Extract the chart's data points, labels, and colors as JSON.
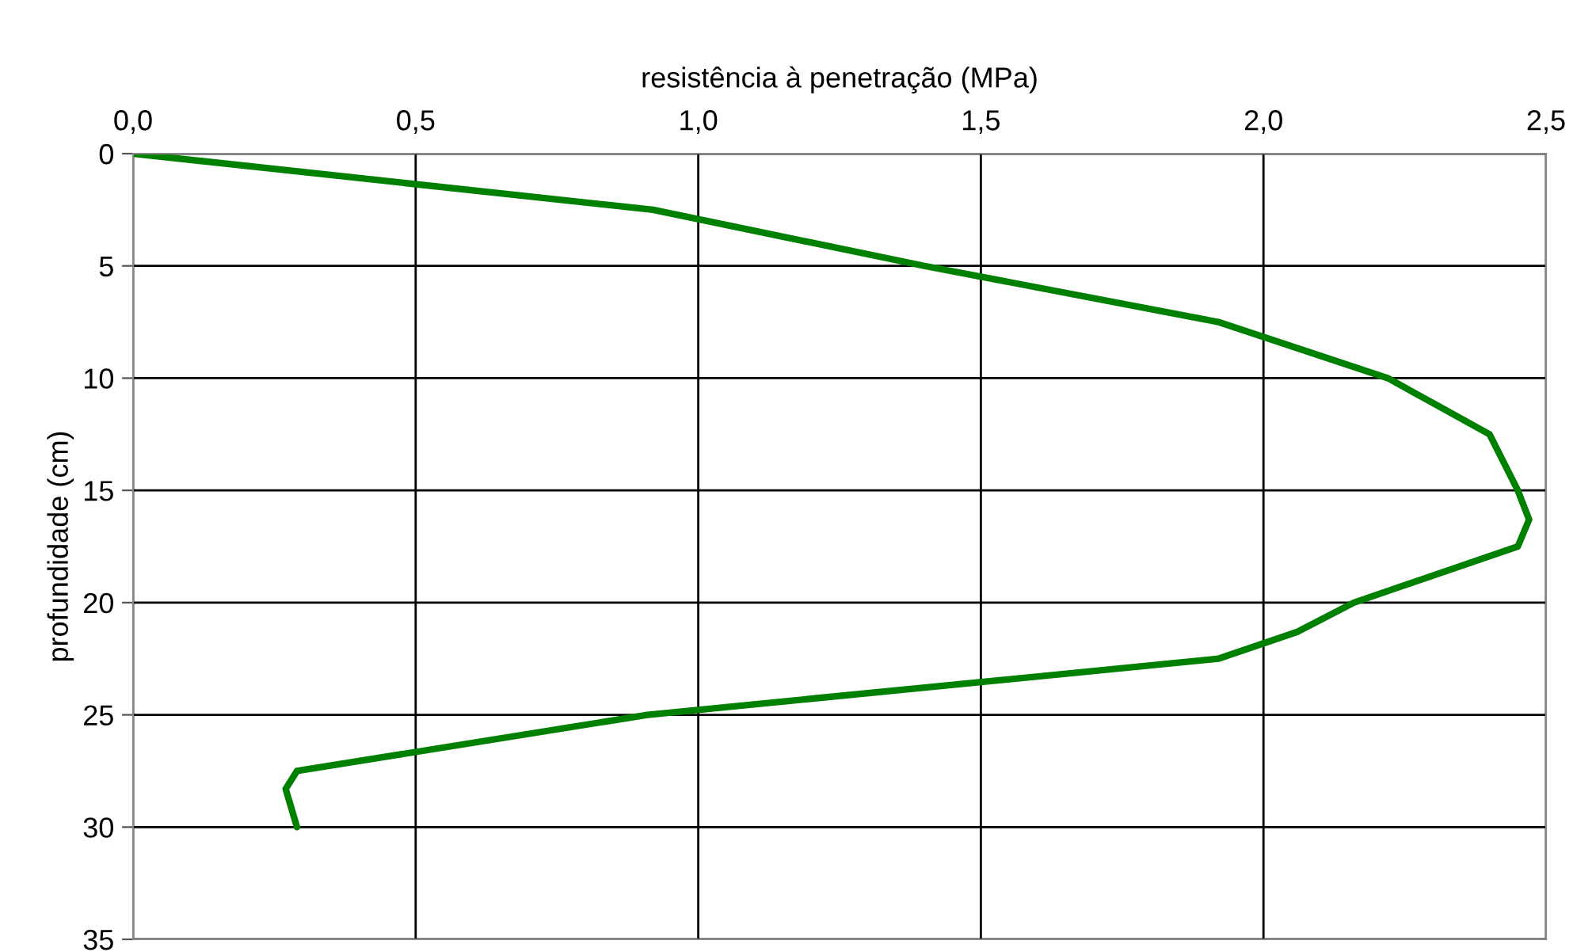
{
  "chart_data": {
    "type": "line",
    "xlabel": "resistência à penetração (MPa)",
    "ylabel": "profundidade (cm)",
    "x": [
      0,
      0.92,
      1.4,
      1.92,
      2.22,
      2.4,
      2.45,
      2.47,
      2.45,
      2.16,
      2.06,
      1.92,
      0.91,
      0.29,
      0.27,
      0.29
    ],
    "series": [
      {
        "color": "#008000",
        "values": [
          0,
          2.5,
          5,
          7.5,
          10,
          12.5,
          15,
          16.3,
          17.5,
          20,
          21.3,
          22.5,
          25,
          27.5,
          28.3,
          30
        ]
      }
    ],
    "xlim": [
      0,
      2.5
    ],
    "xticks": [
      {
        "value": 0,
        "label": "0,0"
      },
      {
        "value": 0.5,
        "label": "0,5"
      },
      {
        "value": 1,
        "label": "1,0"
      },
      {
        "value": 1.5,
        "label": "1,5"
      },
      {
        "value": 2,
        "label": "2,0"
      },
      {
        "value": 2.5,
        "label": "2,5"
      }
    ],
    "ylim": [
      35,
      0
    ],
    "yticks": [
      0,
      5,
      10,
      15,
      20,
      25,
      30,
      35
    ],
    "grid": true,
    "marker": "none",
    "line_style": "solid"
  }
}
